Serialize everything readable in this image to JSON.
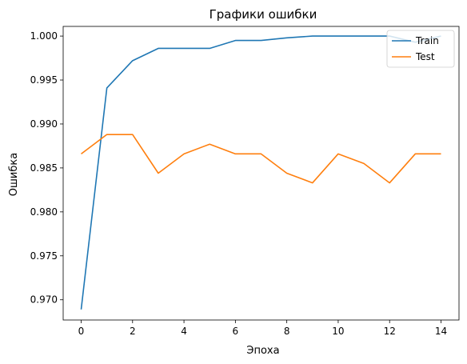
{
  "chart_data": {
    "type": "line",
    "title": "Графики ошибки",
    "xlabel": "Эпоха",
    "ylabel": "Ошибка",
    "x": [
      0,
      1,
      2,
      3,
      4,
      5,
      6,
      7,
      8,
      9,
      10,
      11,
      12,
      13,
      14
    ],
    "xticks": [
      "0",
      "2",
      "4",
      "6",
      "8",
      "10",
      "12",
      "14"
    ],
    "yticks": [
      "0.970",
      "0.975",
      "0.980",
      "0.985",
      "0.990",
      "0.995",
      "1.000"
    ],
    "xlim": [
      -0.7,
      14.7
    ],
    "ylim": [
      0.9677,
      1.0011
    ],
    "grid": false,
    "legend_position": "top-right",
    "series": [
      {
        "name": "Train",
        "color": "#1f77b4",
        "values": [
          0.9689,
          0.9941,
          0.9972,
          0.9986,
          0.9986,
          0.9986,
          0.9995,
          0.9995,
          0.9998,
          1.0,
          1.0,
          1.0,
          1.0,
          0.9993,
          1.0
        ]
      },
      {
        "name": "Test",
        "color": "#ff7f0e",
        "values": [
          0.9866,
          0.9888,
          0.9888,
          0.9844,
          0.9866,
          0.9877,
          0.9866,
          0.9866,
          0.9844,
          0.9833,
          0.9866,
          0.9855,
          0.9833,
          0.9866,
          0.9866
        ]
      }
    ]
  }
}
